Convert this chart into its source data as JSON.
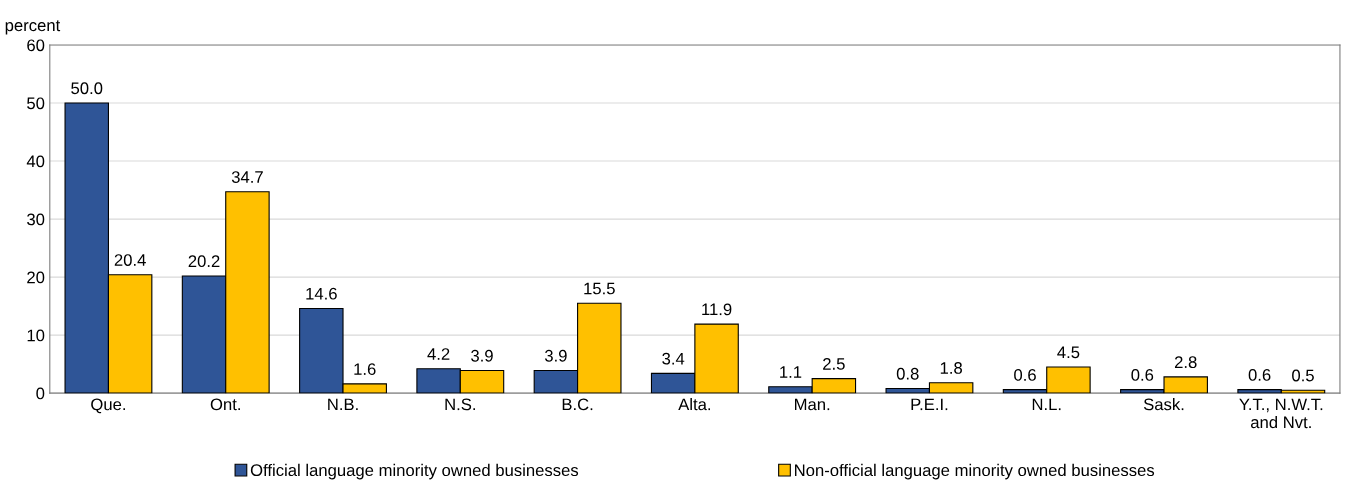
{
  "chart_data": {
    "type": "bar",
    "ylabel": "percent",
    "categories": [
      "Que.",
      "Ont.",
      "N.B.",
      "N.S.",
      "B.C.",
      "Alta.",
      "Man.",
      "P.E.I.",
      "N.L.",
      "Sask.",
      "Y.T., N.W.T.\nand Nvt."
    ],
    "series": [
      {
        "name": "Official language minority owned businesses",
        "color": "#2f5597",
        "values": [
          50.0,
          20.2,
          14.6,
          4.2,
          3.9,
          3.4,
          1.1,
          0.8,
          0.6,
          0.6,
          0.6
        ],
        "value_labels": [
          "50.0",
          "20.2",
          "14.6",
          "4.2",
          "3.9",
          "3.4",
          "1.1",
          "0.8",
          "0.6",
          "0.6",
          "0.6"
        ]
      },
      {
        "name": "Non-official language minority owned businesses",
        "color": "#ffc000",
        "values": [
          20.4,
          34.7,
          1.6,
          3.9,
          15.5,
          11.9,
          2.5,
          1.8,
          4.5,
          2.8,
          0.5
        ],
        "value_labels": [
          "20.4",
          "34.7",
          "1.6",
          "3.9",
          "15.5",
          "11.9",
          "2.5",
          "1.8",
          "4.5",
          "2.8",
          "0.5"
        ]
      }
    ],
    "ylim": [
      0,
      60
    ],
    "yticks": [
      0,
      10,
      20,
      30,
      40,
      50,
      60
    ],
    "grid": "y",
    "legend": "bottom"
  }
}
